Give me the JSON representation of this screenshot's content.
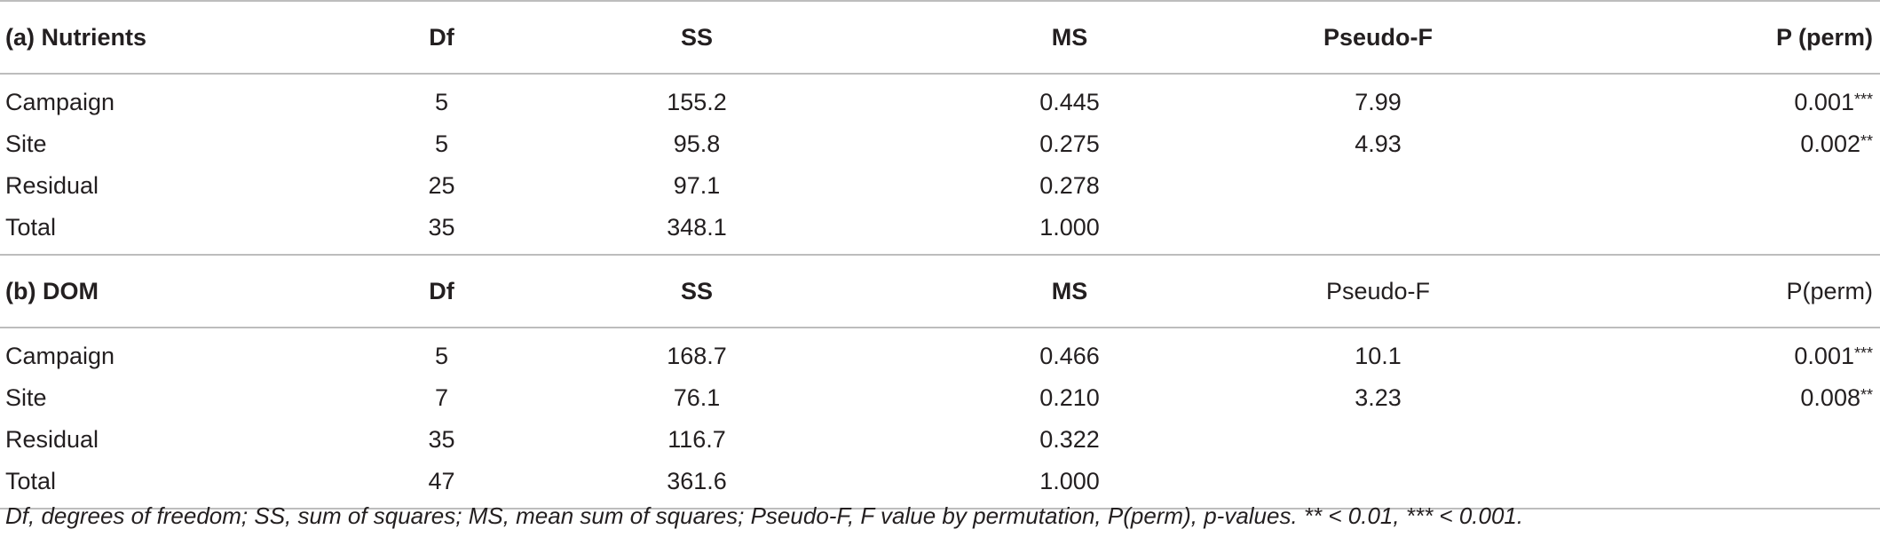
{
  "section_a": {
    "headers": [
      "(a) Nutrients",
      "Df",
      "SS",
      "MS",
      "Pseudo-F",
      "P (perm)"
    ],
    "rows": [
      {
        "label": "Campaign",
        "df": "5",
        "ss": "155.2",
        "ms": "0.445",
        "f": "7.99",
        "p": "0.001",
        "sig": "***"
      },
      {
        "label": "Site",
        "df": "5",
        "ss": "95.8",
        "ms": "0.275",
        "f": "4.93",
        "p": "0.002",
        "sig": "**"
      },
      {
        "label": "Residual",
        "df": "25",
        "ss": "97.1",
        "ms": "0.278",
        "f": "",
        "p": "",
        "sig": ""
      },
      {
        "label": "Total",
        "df": "35",
        "ss": "348.1",
        "ms": "1.000",
        "f": "",
        "p": "",
        "sig": ""
      }
    ]
  },
  "section_b": {
    "headers": [
      "(b) DOM",
      "Df",
      "SS",
      "MS",
      "Pseudo-F",
      "P(perm)"
    ],
    "rows": [
      {
        "label": "Campaign",
        "df": "5",
        "ss": "168.7",
        "ms": "0.466",
        "f": "10.1",
        "p": "0.001",
        "sig": "***"
      },
      {
        "label": "Site",
        "df": "7",
        "ss": "76.1",
        "ms": "0.210",
        "f": "3.23",
        "p": "0.008",
        "sig": "**"
      },
      {
        "label": "Residual",
        "df": "35",
        "ss": "116.7",
        "ms": "0.322",
        "f": "",
        "p": "",
        "sig": ""
      },
      {
        "label": "Total",
        "df": "47",
        "ss": "361.6",
        "ms": "1.000",
        "f": "",
        "p": "",
        "sig": ""
      }
    ]
  },
  "footnote": "Df, degrees of freedom; SS, sum of squares; MS, mean sum of squares; Pseudo-F, F value by permutation, P(perm), p-values. ** < 0.01, *** < 0.001."
}
